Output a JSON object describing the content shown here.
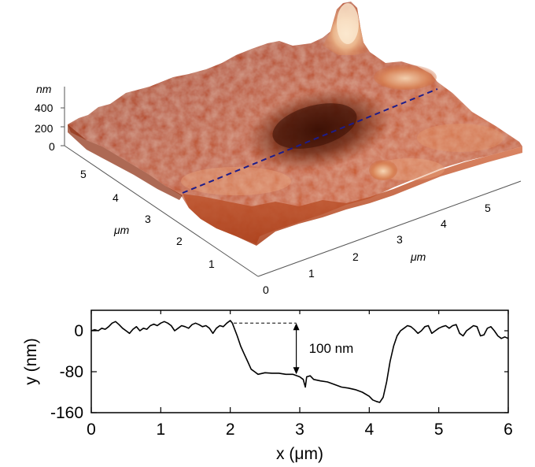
{
  "chart_data": [
    {
      "type": "surface",
      "z_axis": {
        "unit_label": "nm",
        "ticks": [
          "400",
          "200",
          "0"
        ]
      },
      "y_axis": {
        "unit_label": "μm",
        "ticks": [
          "1",
          "2",
          "3",
          "4",
          "5"
        ]
      },
      "x_axis": {
        "unit_label": "μm",
        "ticks": [
          "0",
          "1",
          "2",
          "3",
          "4",
          "5"
        ]
      },
      "colors": {
        "low": "#4a1505",
        "mid": "#b8421a",
        "high": "#f4d7b4",
        "profile_line": "#1d1d8a"
      }
    },
    {
      "type": "line",
      "xlabel": "x (μm)",
      "ylabel": "y (nm)",
      "xlim": [
        0,
        6
      ],
      "ylim": [
        -160,
        40
      ],
      "xticks": [
        0,
        1,
        2,
        3,
        4,
        5,
        6
      ],
      "yticks": [
        0,
        -80,
        -160
      ],
      "annotation": {
        "text": "100 nm",
        "x": 2.95,
        "y_top": 15,
        "y_bottom": -85,
        "dash_from_x": 2.05
      },
      "series": [
        {
          "color": "#000000",
          "x": [
            0,
            0.05,
            0.1,
            0.15,
            0.2,
            0.25,
            0.3,
            0.35,
            0.4,
            0.45,
            0.5,
            0.55,
            0.6,
            0.65,
            0.7,
            0.75,
            0.8,
            0.85,
            0.9,
            0.95,
            1.0,
            1.05,
            1.1,
            1.15,
            1.2,
            1.25,
            1.3,
            1.35,
            1.4,
            1.45,
            1.5,
            1.55,
            1.6,
            1.65,
            1.7,
            1.75,
            1.8,
            1.85,
            1.9,
            1.95,
            2.0,
            2.03,
            2.1,
            2.15,
            2.2,
            2.25,
            2.3,
            2.35,
            2.4,
            2.5,
            2.6,
            2.7,
            2.8,
            2.9,
            3.0,
            3.05,
            3.08,
            3.1,
            3.15,
            3.2,
            3.3,
            3.4,
            3.5,
            3.6,
            3.7,
            3.8,
            3.9,
            4.0,
            4.05,
            4.1,
            4.15,
            4.2,
            4.25,
            4.3,
            4.35,
            4.4,
            4.45,
            4.5,
            4.55,
            4.6,
            4.65,
            4.7,
            4.75,
            4.8,
            4.85,
            4.9,
            4.95,
            5.0,
            5.05,
            5.1,
            5.15,
            5.2,
            5.25,
            5.3,
            5.35,
            5.4,
            5.45,
            5.5,
            5.55,
            5.6,
            5.65,
            5.7,
            5.75,
            5.8,
            5.85,
            5.9,
            5.95,
            6.0
          ],
          "y": [
            0,
            2,
            0,
            5,
            3,
            8,
            15,
            18,
            12,
            5,
            0,
            -5,
            3,
            8,
            0,
            5,
            3,
            10,
            13,
            10,
            15,
            18,
            15,
            10,
            0,
            5,
            10,
            8,
            5,
            12,
            15,
            12,
            8,
            10,
            5,
            -5,
            5,
            10,
            8,
            15,
            20,
            15,
            -10,
            -30,
            -45,
            -60,
            -75,
            -80,
            -85,
            -82,
            -83,
            -83,
            -85,
            -85,
            -90,
            -95,
            -110,
            -90,
            -88,
            -95,
            -98,
            -100,
            -105,
            -110,
            -112,
            -115,
            -120,
            -128,
            -135,
            -138,
            -140,
            -130,
            -100,
            -60,
            -30,
            -10,
            0,
            5,
            10,
            8,
            2,
            -5,
            0,
            8,
            10,
            -5,
            0,
            5,
            8,
            10,
            5,
            10,
            12,
            -5,
            -10,
            0,
            5,
            10,
            8,
            -10,
            -8,
            5,
            8,
            0,
            -10,
            -15,
            -12,
            -15
          ]
        }
      ]
    }
  ]
}
